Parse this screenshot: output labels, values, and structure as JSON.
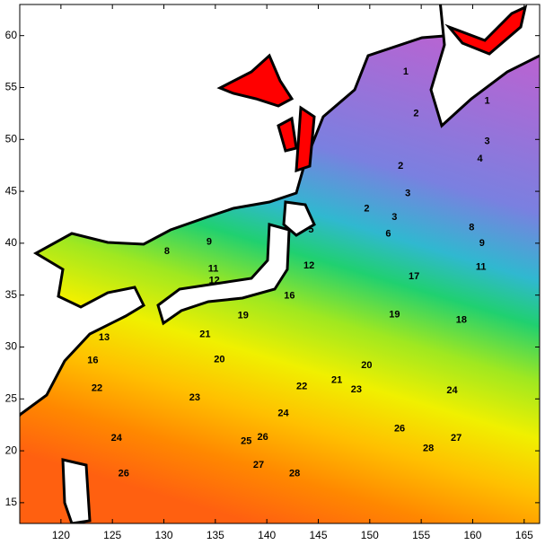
{
  "chart_data": {
    "type": "contour",
    "xlim": [
      116,
      166.5
    ],
    "ylim": [
      13,
      63
    ],
    "xticks": [
      120,
      125,
      130,
      135,
      140,
      145,
      150,
      155,
      160,
      165
    ],
    "yticks": [
      15,
      20,
      25,
      30,
      35,
      40,
      45,
      50,
      55,
      60
    ],
    "contour_labels": {
      "lon": [
        153.5,
        154.5,
        161.4,
        161.4,
        160.7,
        153,
        153.7,
        149.7,
        152.4,
        144.3,
        151.8,
        159.9,
        160.9,
        160.8,
        154.3,
        152.4,
        158.9,
        130.3,
        134.4,
        134.8,
        134.9,
        144.1,
        142.2,
        137.7,
        134,
        135.4,
        149.7,
        146.8,
        143.4,
        148.7,
        158,
        133,
        141.6,
        152.9,
        125.4,
        138,
        139.6,
        158.4,
        155.7,
        139.2,
        126.1,
        142.7,
        124.2,
        123.1,
        123.5
      ],
      "lat": [
        56.5,
        52.5,
        53.7,
        49.8,
        48.1,
        47.4,
        44.8,
        43.3,
        42.5,
        41.3,
        40.9,
        41.5,
        40,
        37.7,
        36.8,
        33.1,
        32.6,
        39.2,
        40.1,
        37.5,
        36.4,
        37.8,
        34.9,
        33,
        31.2,
        28.8,
        28.2,
        26.8,
        26.2,
        25.9,
        25.8,
        25.1,
        23.6,
        22.1,
        21.2,
        20.9,
        21.3,
        21.2,
        20.2,
        18.6,
        17.8,
        17.8,
        30.9,
        28.7,
        26
      ],
      "values": [
        1,
        2,
        1,
        3,
        4,
        2,
        3,
        2,
        3,
        5,
        6,
        8,
        9,
        11,
        17,
        19,
        18,
        8,
        9,
        11,
        12,
        12,
        16,
        19,
        21,
        20,
        20,
        21,
        22,
        23,
        24,
        23,
        24,
        26,
        24,
        25,
        26,
        27,
        28,
        27,
        26,
        28,
        13,
        16,
        22
      ]
    }
  }
}
